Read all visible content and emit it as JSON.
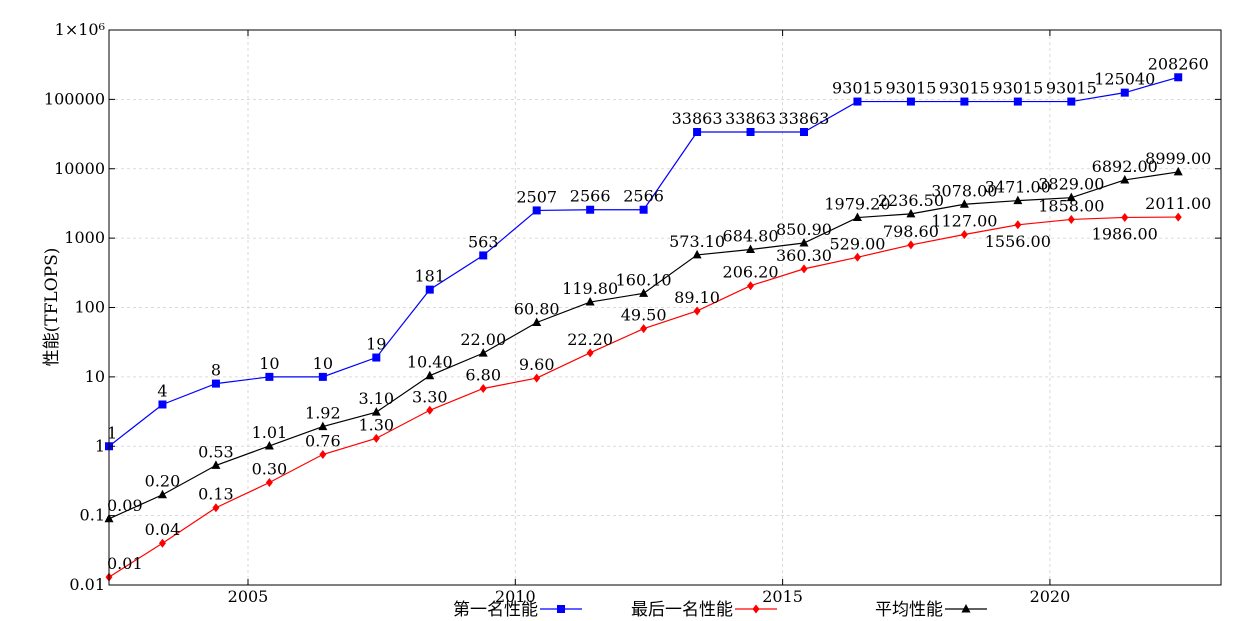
{
  "chart_data": {
    "type": "line",
    "ylabel": "性能(TFLOPS)",
    "yscale": "log",
    "ylim": [
      0.01,
      1000000
    ],
    "xlim": [
      2002.4,
      2023.2
    ],
    "grid": true,
    "legend_position": "bottom-center",
    "y_tick_labels": [
      "0.01",
      "0.1",
      "1",
      "10",
      "100",
      "1000",
      "10000",
      "100000",
      "1×10⁶"
    ],
    "x_tick_labels": [
      "2005",
      "2010",
      "2015",
      "2020"
    ],
    "x": [
      2002.4,
      2003.4,
      2004.4,
      2005.4,
      2006.4,
      2007.4,
      2008.4,
      2009.4,
      2010.4,
      2011.4,
      2012.4,
      2013.4,
      2014.4,
      2015.4,
      2016.4,
      2017.4,
      2018.4,
      2019.4,
      2020.4,
      2021.4,
      2022.4
    ],
    "series": [
      {
        "name": "第一名性能",
        "color": "#0000ff",
        "marker": "square",
        "values": [
          1,
          4,
          8,
          10,
          10,
          19,
          181,
          563,
          2507,
          2566,
          2566,
          33863,
          33863,
          33863,
          93015,
          93015,
          93015,
          93015,
          93015,
          125040,
          208260
        ],
        "labels": [
          "1",
          "4",
          "8",
          "10",
          "10",
          "19",
          "181",
          "563",
          "2507",
          "2566",
          "2566",
          "33863",
          "33863",
          "33863",
          "93015",
          "93015",
          "93015",
          "93015",
          "93015",
          "125040",
          "208260"
        ]
      },
      {
        "name": "最后一名性能",
        "color": "#ff0000",
        "marker": "diamond",
        "values": [
          0.013,
          0.04,
          0.13,
          0.3,
          0.76,
          1.3,
          3.3,
          6.8,
          9.6,
          22.2,
          49.5,
          89.1,
          206.2,
          360.3,
          529.0,
          798.6,
          1127.0,
          1556.0,
          1858.0,
          1986.0,
          2011.0
        ],
        "labels": [
          "0.01",
          "0.04",
          "0.13",
          "0.30",
          "0.76",
          "1.30",
          "3.30",
          "6.80",
          "9.60",
          "22.20",
          "49.50",
          "89.10",
          "206.20",
          "360.30",
          "529.00",
          "798.60",
          "1127.00",
          "1556.00",
          "1858.00",
          "1986.00",
          "2011.00"
        ]
      },
      {
        "name": "平均性能",
        "color": "#000000",
        "marker": "triangle",
        "values": [
          0.09,
          0.2,
          0.53,
          1.01,
          1.92,
          3.1,
          10.4,
          22.0,
          60.8,
          119.8,
          160.1,
          573.1,
          684.8,
          850.9,
          1979.2,
          2236.5,
          3078.0,
          3471.0,
          3829.0,
          6892.0,
          8999.0
        ],
        "labels": [
          "0.09",
          "0.20",
          "0.53",
          "1.01",
          "1.92",
          "3.10",
          "10.40",
          "22.00",
          "60.80",
          "119.80",
          "160.10",
          "573.10",
          "684.80",
          "850.90",
          "1979.20",
          "2236.50",
          "3078.00",
          "3471.00",
          "3829.00",
          "6892.00",
          "8999.00"
        ]
      }
    ]
  }
}
